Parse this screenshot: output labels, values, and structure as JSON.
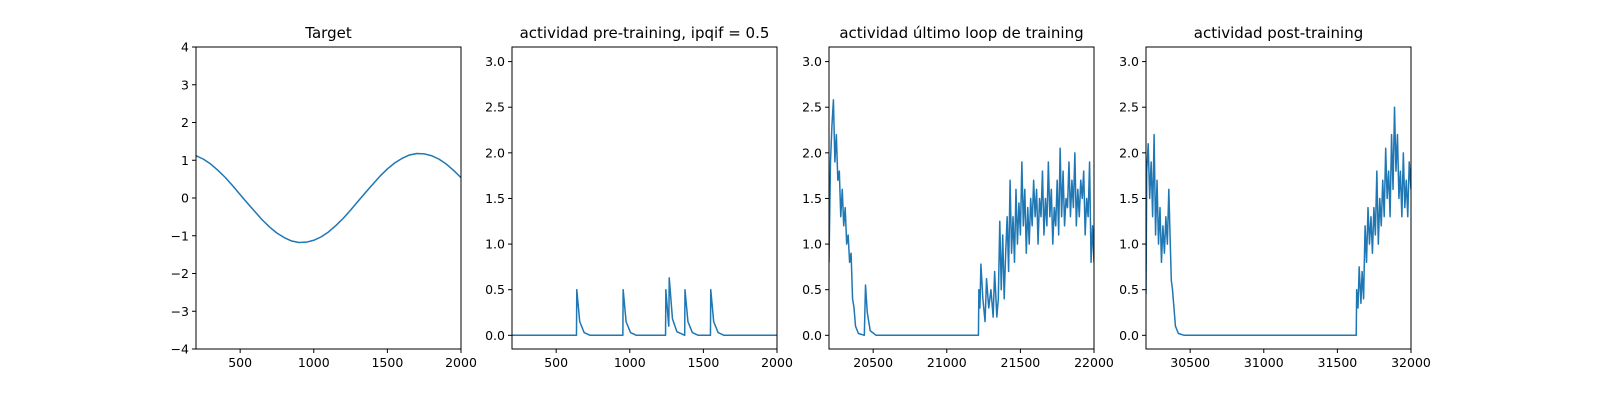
{
  "chart_data": [
    {
      "type": "line",
      "title": "Target",
      "color": "#1f77b4",
      "grid": false,
      "x": [
        200,
        250,
        300,
        350,
        400,
        450,
        500,
        550,
        600,
        650,
        700,
        750,
        800,
        850,
        900,
        950,
        1000,
        1050,
        1100,
        1150,
        1200,
        1250,
        1300,
        1350,
        1400,
        1450,
        1500,
        1550,
        1600,
        1650,
        1700,
        1750,
        1800,
        1850,
        1900,
        1950,
        2000
      ],
      "values": [
        1.12,
        1.03,
        0.9,
        0.73,
        0.54,
        0.32,
        0.09,
        -0.14,
        -0.36,
        -0.58,
        -0.77,
        -0.93,
        -1.05,
        -1.14,
        -1.18,
        -1.17,
        -1.12,
        -1.03,
        -0.9,
        -0.73,
        -0.54,
        -0.32,
        -0.09,
        0.14,
        0.36,
        0.58,
        0.77,
        0.93,
        1.05,
        1.14,
        1.18,
        1.17,
        1.12,
        1.03,
        0.9,
        0.73,
        0.54
      ],
      "xlim": [
        200,
        2000
      ],
      "xticks": [
        500,
        1000,
        1500,
        2000
      ],
      "ylim": [
        -4,
        4
      ],
      "yticks": [
        {
          "value": -4,
          "label": "−4"
        },
        {
          "value": -3,
          "label": "−3"
        },
        {
          "value": -2,
          "label": "−2"
        },
        {
          "value": -1,
          "label": "−1"
        },
        0,
        1,
        2,
        3,
        4
      ]
    },
    {
      "type": "line",
      "title": "actividad pre-training, ipqif = 0.5",
      "color": "#1f77b4",
      "grid": false,
      "x": [
        200,
        638,
        640,
        660,
        690,
        730,
        953,
        955,
        975,
        1005,
        1045,
        1243,
        1245,
        1262,
        1265,
        1268,
        1290,
        1320,
        1373,
        1375,
        1395,
        1425,
        1465,
        1548,
        1550,
        1570,
        1600,
        1640,
        2000
      ],
      "values": [
        0,
        0,
        0.5,
        0.15,
        0.03,
        0,
        0,
        0.5,
        0.15,
        0.03,
        0,
        0,
        0.5,
        0.15,
        0.1,
        0.63,
        0.18,
        0.04,
        0,
        0.5,
        0.15,
        0.03,
        0,
        0,
        0.5,
        0.15,
        0.03,
        0,
        0
      ],
      "xlim": [
        200,
        2000
      ],
      "xticks": [
        500,
        1000,
        1500,
        2000
      ],
      "ylim": [
        -0.15,
        3.16
      ],
      "yticks": [
        {
          "value": 0,
          "label": "0.0"
        },
        0.5,
        {
          "value": 1,
          "label": "1.0"
        },
        1.5,
        {
          "value": 2,
          "label": "2.0"
        },
        2.5,
        {
          "value": 3,
          "label": "3.0"
        }
      ]
    },
    {
      "type": "line",
      "title": "actividad último loop de training",
      "color": "#1f77b4",
      "grid": false,
      "x": [
        20200,
        20210,
        20220,
        20230,
        20240,
        20250,
        20260,
        20270,
        20280,
        20290,
        20300,
        20310,
        20320,
        20330,
        20340,
        20350,
        20360,
        20370,
        20380,
        20400,
        20440,
        20448,
        20460,
        20480,
        20520,
        21215,
        21218,
        21225,
        21232,
        21245,
        21260,
        21270,
        21285,
        21300,
        21315,
        21325,
        21340,
        21350,
        21360,
        21370,
        21380,
        21390,
        21400,
        21410,
        21420,
        21430,
        21440,
        21450,
        21460,
        21470,
        21480,
        21490,
        21500,
        21510,
        21520,
        21530,
        21540,
        21550,
        21560,
        21570,
        21580,
        21590,
        21600,
        21610,
        21620,
        21630,
        21640,
        21650,
        21660,
        21670,
        21680,
        21690,
        21700,
        21710,
        21720,
        21730,
        21740,
        21750,
        21760,
        21770,
        21780,
        21790,
        21800,
        21810,
        21820,
        21830,
        21840,
        21850,
        21860,
        21870,
        21880,
        21890,
        21900,
        21910,
        21920,
        21930,
        21940,
        21950,
        21960,
        21970,
        21980,
        21990,
        22000
      ],
      "values": [
        0.8,
        1.9,
        2.3,
        2.58,
        1.9,
        2.2,
        1.7,
        1.8,
        1.3,
        1.6,
        1.2,
        1.4,
        1.0,
        1.1,
        0.8,
        0.9,
        0.4,
        0.3,
        0.1,
        0.02,
        0,
        0.55,
        0.25,
        0.05,
        0,
        0,
        0.5,
        0.3,
        0.78,
        0.4,
        0.15,
        0.62,
        0.3,
        0.5,
        0.2,
        0.7,
        0.2,
        0.4,
        1.25,
        0.5,
        1.1,
        0.4,
        0.9,
        1.3,
        0.7,
        1.7,
        0.9,
        1.3,
        0.8,
        1.6,
        1.0,
        1.45,
        1.1,
        1.9,
        1.2,
        1.6,
        0.9,
        1.4,
        1.0,
        1.5,
        1.2,
        1.7,
        1.3,
        1.6,
        1.0,
        1.5,
        1.3,
        1.8,
        1.1,
        1.5,
        1.2,
        1.9,
        1.3,
        1.6,
        1.0,
        1.4,
        1.2,
        1.7,
        1.1,
        2.05,
        1.3,
        1.8,
        1.2,
        1.5,
        1.4,
        1.9,
        1.3,
        1.7,
        1.4,
        2.0,
        1.2,
        1.6,
        1.3,
        1.7,
        1.5,
        1.8,
        1.1,
        1.5,
        1.3,
        1.9,
        0.8,
        1.2,
        0.8
      ],
      "xlim": [
        20200,
        22000
      ],
      "xticks": [
        20500,
        21000,
        21500,
        22000
      ],
      "ylim": [
        -0.15,
        3.16
      ],
      "yticks": [
        {
          "value": 0,
          "label": "0.0"
        },
        0.5,
        {
          "value": 1,
          "label": "1.0"
        },
        1.5,
        {
          "value": 2,
          "label": "2.0"
        },
        2.5,
        {
          "value": 3,
          "label": "3.0"
        }
      ]
    },
    {
      "type": "line",
      "title": "actividad post-training",
      "color": "#1f77b4",
      "grid": false,
      "x": [
        30200,
        30205,
        30215,
        30225,
        30235,
        30245,
        30255,
        30265,
        30275,
        30285,
        30295,
        30305,
        30315,
        30325,
        30335,
        30345,
        30355,
        30365,
        30372,
        30380,
        30390,
        30400,
        30420,
        30460,
        31628,
        31631,
        31640,
        31648,
        31660,
        31668,
        31678,
        31688,
        31698,
        31708,
        31718,
        31728,
        31738,
        31748,
        31758,
        31768,
        31778,
        31788,
        31798,
        31808,
        31818,
        31828,
        31838,
        31848,
        31858,
        31868,
        31878,
        31888,
        31898,
        31908,
        31918,
        31928,
        31938,
        31948,
        31958,
        31968,
        31978,
        31988,
        32000
      ],
      "values": [
        0.45,
        1.8,
        2.1,
        1.5,
        1.9,
        1.3,
        2.2,
        1.1,
        1.7,
        1.0,
        1.4,
        0.8,
        1.2,
        0.9,
        1.3,
        1.0,
        1.6,
        1.0,
        0.6,
        0.5,
        0.3,
        0.1,
        0.02,
        0,
        0,
        0.5,
        0.3,
        0.75,
        0.35,
        0.7,
        0.4,
        1.2,
        0.8,
        1.4,
        1.0,
        1.3,
        0.9,
        1.4,
        1.1,
        1.8,
        1.0,
        1.5,
        1.2,
        1.7,
        1.3,
        2.05,
        1.5,
        1.8,
        1.3,
        2.2,
        1.6,
        2.5,
        1.8,
        2.2,
        1.5,
        1.8,
        1.3,
        2.0,
        1.4,
        1.7,
        1.3,
        1.9,
        1.6
      ],
      "xlim": [
        30200,
        32000
      ],
      "xticks": [
        30500,
        31000,
        31500,
        32000
      ],
      "ylim": [
        -0.15,
        3.16
      ],
      "yticks": [
        {
          "value": 0,
          "label": "0.0"
        },
        0.5,
        {
          "value": 1,
          "label": "1.0"
        },
        1.5,
        {
          "value": 2,
          "label": "2.0"
        },
        2.5,
        {
          "value": 3,
          "label": "3.0"
        }
      ]
    }
  ]
}
